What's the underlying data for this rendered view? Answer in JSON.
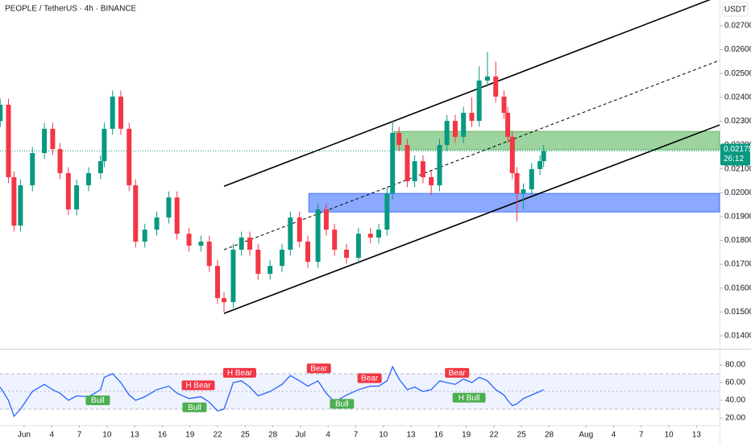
{
  "chart_data": {
    "type": "candlestick",
    "title": "PEOPLE / TetherUS · 4h · BINANCE",
    "currency": "USDT",
    "x": [
      -2.6,
      -1.7,
      -1.1,
      -0.4,
      0.9,
      2.2,
      3.1,
      3.9,
      4.8,
      5.7,
      7,
      8.3,
      8.7,
      9.6,
      10.5,
      11.4,
      12.1,
      13.1,
      14.4,
      15.7,
      16.6,
      17.9,
      19.2,
      20.1,
      21,
      21.7,
      22.7,
      23.6,
      24.5,
      25.4,
      26.7,
      28,
      28.9,
      29.9,
      30.8,
      31.9,
      32.8,
      33.7,
      35,
      36.3,
      37.6,
      38.5,
      39.4,
      40,
      40.7,
      41.6,
      42.4,
      43.3,
      44.2,
      45.1,
      45.9,
      46.8,
      47.7,
      48.6,
      49.4,
      50.3,
      51.2,
      52.1,
      52.5,
      53,
      53.5,
      54.2,
      55.1,
      56,
      56.4
    ],
    "open": [
      0.023,
      0.02369,
      0.02065,
      0.01862,
      0.02031,
      0.02166,
      0.02268,
      0.02183,
      0.02082,
      0.0193,
      0.02031,
      0.02082,
      0.02132,
      0.02268,
      0.02403,
      0.02268,
      0.02031,
      0.01795,
      0.01845,
      0.01896,
      0.0198,
      0.01828,
      0.01778,
      0.01795,
      0.01693,
      0.01558,
      0.01541,
      0.01761,
      0.01812,
      0.01761,
      0.0166,
      0.01693,
      0.01761,
      0.01896,
      0.01795,
      0.0171,
      0.0193,
      0.01845,
      0.01761,
      0.01727,
      0.01828,
      0.01812,
      0.01845,
      0.01997,
      0.02251,
      0.022,
      0.02048,
      0.02132,
      0.02065,
      0.02031,
      0.022,
      0.02301,
      0.02234,
      0.02335,
      0.02301,
      0.0247,
      0.02487,
      0.02403,
      0.02335,
      0.02234,
      0.02082,
      0.01997,
      0.02014,
      0.02099,
      0.02132
    ],
    "high": [
      0.02394,
      0.02394,
      0.0209,
      0.02056,
      0.02191,
      0.02293,
      0.02293,
      0.02208,
      0.02107,
      0.02056,
      0.02107,
      0.02157,
      0.02293,
      0.02428,
      0.02428,
      0.02293,
      0.02056,
      0.0187,
      0.01921,
      0.02005,
      0.02005,
      0.01853,
      0.0182,
      0.0182,
      0.01718,
      0.01583,
      0.01786,
      0.01837,
      0.01837,
      0.01786,
      0.01718,
      0.01786,
      0.01921,
      0.01921,
      0.0182,
      0.01955,
      0.01955,
      0.0187,
      0.01786,
      0.01853,
      0.01853,
      0.0187,
      0.02022,
      0.023,
      0.02276,
      0.02225,
      0.02157,
      0.02157,
      0.0209,
      0.02225,
      0.02326,
      0.02326,
      0.0236,
      0.024,
      0.0253,
      0.0259,
      0.0255,
      0.02428,
      0.0236,
      0.02259,
      0.02107,
      0.02039,
      0.02124,
      0.02157,
      0.022
    ],
    "low": [
      0.02275,
      0.0204,
      0.01837,
      0.01837,
      0.02006,
      0.02141,
      0.02158,
      0.02057,
      0.01905,
      0.01905,
      0.02006,
      0.02057,
      0.02107,
      0.02243,
      0.02243,
      0.02006,
      0.0177,
      0.0177,
      0.0182,
      0.01871,
      0.01803,
      0.01753,
      0.01753,
      0.01668,
      0.01533,
      0.015,
      0.01516,
      0.01736,
      0.01736,
      0.01635,
      0.01635,
      0.01668,
      0.01736,
      0.0177,
      0.01685,
      0.01685,
      0.0182,
      0.01736,
      0.01702,
      0.01702,
      0.01787,
      0.01787,
      0.0182,
      0.01972,
      0.02175,
      0.02023,
      0.02023,
      0.0204,
      0.0199,
      0.02006,
      0.02175,
      0.02209,
      0.02209,
      0.02276,
      0.02276,
      0.02445,
      0.02378,
      0.0231,
      0.02209,
      0.02057,
      0.0188,
      0.0193,
      0.01989,
      0.02074,
      0.02107
    ],
    "close": [
      0.02369,
      0.02065,
      0.01862,
      0.02031,
      0.02166,
      0.02268,
      0.02183,
      0.02082,
      0.0193,
      0.02031,
      0.02082,
      0.02132,
      0.02268,
      0.02403,
      0.02268,
      0.02031,
      0.01795,
      0.01845,
      0.01896,
      0.0198,
      0.01828,
      0.01778,
      0.01795,
      0.01693,
      0.01558,
      0.01541,
      0.01761,
      0.01812,
      0.01761,
      0.0166,
      0.01693,
      0.01761,
      0.01896,
      0.01795,
      0.0171,
      0.0193,
      0.01845,
      0.01761,
      0.01727,
      0.01828,
      0.01812,
      0.01845,
      0.01997,
      0.02251,
      0.022,
      0.02048,
      0.02132,
      0.02065,
      0.02031,
      0.022,
      0.02301,
      0.02234,
      0.02335,
      0.02301,
      0.0247,
      0.02487,
      0.02403,
      0.02335,
      0.02234,
      0.02082,
      0.01997,
      0.02014,
      0.02099,
      0.02132,
      0.02175
    ],
    "up_color": "#089981",
    "down_color": "#f23645",
    "xlim": [
      -2.62,
      75.5
    ],
    "xticks": [
      {
        "value": 0,
        "label": "Jun"
      },
      {
        "value": 3,
        "label": "4"
      },
      {
        "value": 6,
        "label": "7"
      },
      {
        "value": 9,
        "label": "10"
      },
      {
        "value": 12,
        "label": "13"
      },
      {
        "value": 15,
        "label": "16"
      },
      {
        "value": 18,
        "label": "19"
      },
      {
        "value": 21,
        "label": "22"
      },
      {
        "value": 24,
        "label": "25"
      },
      {
        "value": 27,
        "label": "28"
      },
      {
        "value": 30,
        "label": "Jul"
      },
      {
        "value": 33,
        "label": "4"
      },
      {
        "value": 36,
        "label": "7"
      },
      {
        "value": 39,
        "label": "10"
      },
      {
        "value": 42,
        "label": "13"
      },
      {
        "value": 45,
        "label": "16"
      },
      {
        "value": 48,
        "label": "19"
      },
      {
        "value": 51,
        "label": "22"
      },
      {
        "value": 54,
        "label": "25"
      },
      {
        "value": 57,
        "label": "28"
      },
      {
        "value": 61,
        "label": "Aug"
      },
      {
        "value": 64,
        "label": "4"
      },
      {
        "value": 67,
        "label": "7"
      },
      {
        "value": 70,
        "label": "10"
      },
      {
        "value": 73,
        "label": "13"
      }
    ],
    "ylim": [
      0.01349,
      0.02808
    ],
    "yticks": [
      {
        "value": 0.014,
        "label": "0.01400"
      },
      {
        "value": 0.015,
        "label": "0.01500"
      },
      {
        "value": 0.016,
        "label": "0.01600"
      },
      {
        "value": 0.017,
        "label": "0.01700"
      },
      {
        "value": 0.018,
        "label": "0.01800"
      },
      {
        "value": 0.019,
        "label": "0.01900"
      },
      {
        "value": 0.02,
        "label": "0.02000"
      },
      {
        "value": 0.021,
        "label": "0.02100"
      },
      {
        "value": 0.022,
        "label": "0.02200"
      },
      {
        "value": 0.023,
        "label": "0.02300"
      },
      {
        "value": 0.024,
        "label": "0.02400"
      },
      {
        "value": 0.025,
        "label": "0.02500"
      },
      {
        "value": 0.026,
        "label": "0.02600"
      },
      {
        "value": 0.027,
        "label": "0.02700"
      }
    ],
    "last_price": 0.02175,
    "countdown": "26:12",
    "channel": {
      "x": [
        21.7,
        75.5
      ],
      "upper": [
        0.02027,
        0.02825
      ],
      "middle": [
        0.01761,
        0.02555
      ],
      "lower": [
        0.01494,
        0.02284
      ],
      "color": "#000000"
    },
    "zones": [
      {
        "x0": 40.2,
        "top": 0.02257,
        "bottom": 0.0218,
        "color": "#4caf50"
      },
      {
        "x0": 30.9,
        "top": 0.01997,
        "bottom": 0.01919,
        "color": "#2962ff"
      }
    ],
    "rsi": {
      "values": [
        55,
        40,
        22,
        30,
        50,
        58,
        52,
        48,
        40,
        45,
        44,
        52,
        66,
        70,
        60,
        46,
        40,
        44,
        52,
        56,
        48,
        42,
        44,
        38,
        28,
        30,
        60,
        62,
        55,
        45,
        50,
        58,
        68,
        62,
        56,
        62,
        48,
        38,
        46,
        52,
        56,
        56,
        62,
        78,
        64,
        52,
        55,
        50,
        52,
        62,
        60,
        58,
        64,
        60,
        66,
        62,
        52,
        46,
        40,
        34,
        36,
        42,
        46,
        50,
        52
      ],
      "color": "#2962ff",
      "ylim": [
        11.8,
        95.5
      ],
      "yticks": [
        {
          "value": 80,
          "label": "80.00"
        },
        {
          "value": 60,
          "label": "60.00"
        },
        {
          "value": 40,
          "label": "40.00"
        },
        {
          "value": 20,
          "label": "20.00"
        }
      ],
      "band": [
        30,
        70
      ],
      "mid": 50,
      "signals": [
        {
          "x": 8,
          "value": 40,
          "label": "Bull",
          "color": "#4caf50"
        },
        {
          "x": 18.5,
          "value": 32,
          "label": "Bull",
          "color": "#4caf50"
        },
        {
          "x": 18.9,
          "value": 57,
          "label": "H Bear",
          "color": "#f23645"
        },
        {
          "x": 23.4,
          "value": 71,
          "label": "H Bear",
          "color": "#f23645"
        },
        {
          "x": 32,
          "value": 76,
          "label": "Bear",
          "color": "#f23645"
        },
        {
          "x": 34.5,
          "value": 36,
          "label": "Bull",
          "color": "#4caf50"
        },
        {
          "x": 37.5,
          "value": 65,
          "label": "Bear",
          "color": "#f23645"
        },
        {
          "x": 47,
          "value": 71,
          "label": "Bear",
          "color": "#f23645"
        },
        {
          "x": 48.3,
          "value": 43,
          "label": "H Bull",
          "color": "#4caf50"
        }
      ]
    }
  }
}
